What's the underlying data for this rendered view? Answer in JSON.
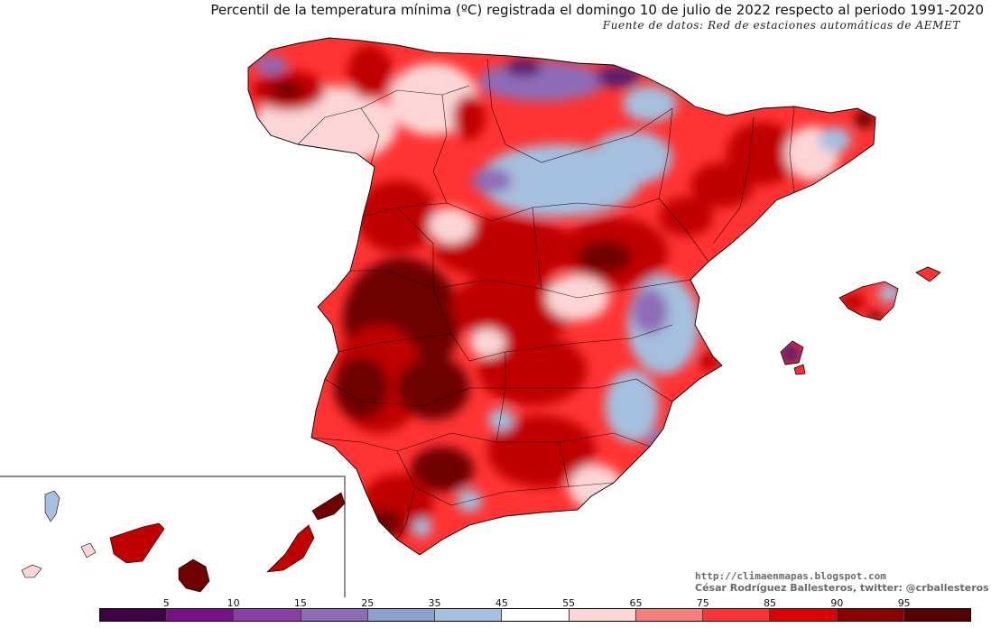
{
  "title": "Percentil de la temperatura mínima (ºC) registrada el domingo 10 de julio de 2022 respecto al periodo 1991-2020",
  "subtitle": "Fuente de datos: Red de estaciones automáticas de AEMET",
  "credits": {
    "url": "http://climaenmapas.blogspot.com",
    "author": "César Rodríguez Ballesteros, twitter: @crballesteros"
  },
  "legend": {
    "labels": [
      "5",
      "10",
      "15",
      "25",
      "35",
      "45",
      "55",
      "65",
      "75",
      "85",
      "90",
      "95"
    ],
    "colors": [
      "#3d0045",
      "#7a0f8a",
      "#8a3fa6",
      "#8f6cb8",
      "#8d9fcc",
      "#a4c0de",
      "#ffffff",
      "#fcd6d6",
      "#f77c7c",
      "#ff3333",
      "#dd0000",
      "#8e0000",
      "#560000"
    ]
  },
  "palette": {
    "bg": "#ffffff",
    "warm": "#ff3333",
    "hot": "#c00000",
    "extreme": "#6e0000",
    "pink": "#fcd6d6",
    "cool": "#a4c0de",
    "cold": "#8f6cb8",
    "coldest": "#5a1a70"
  }
}
